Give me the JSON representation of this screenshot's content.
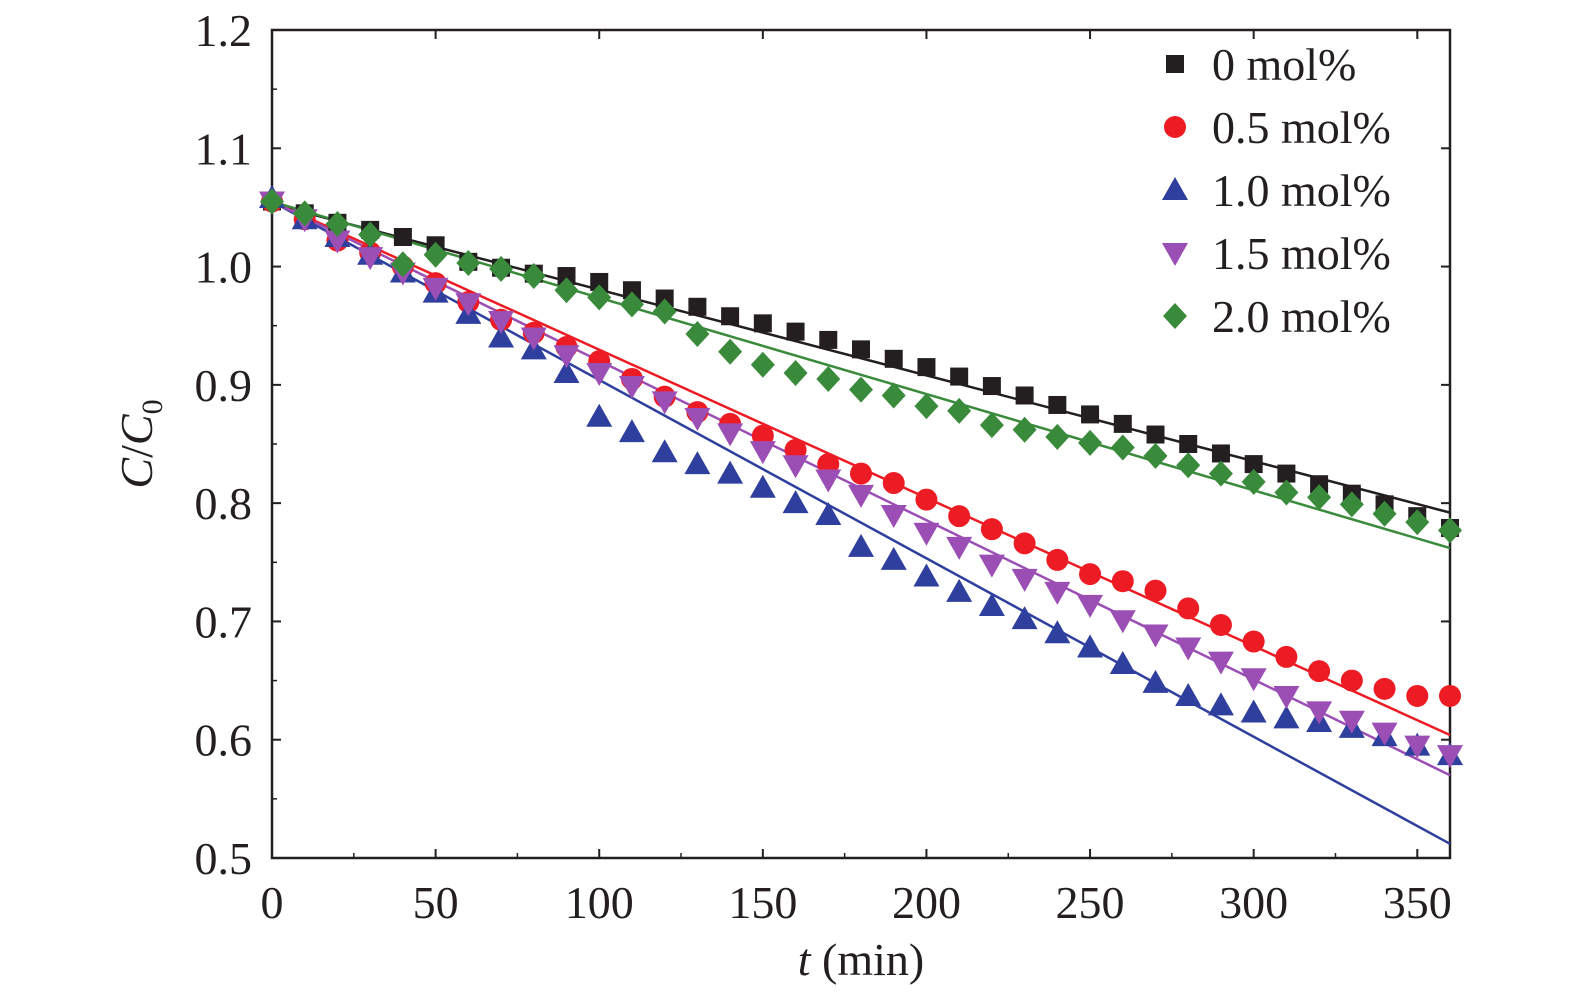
{
  "chart_data": {
    "type": "scatter",
    "xlabel": {
      "var": "t",
      "rest": " (min)"
    },
    "ylabel": {
      "var": "C",
      "slash": "/",
      "var2": "C",
      "sub": "0"
    },
    "xlim": [
      0,
      360
    ],
    "ylim": [
      0.5,
      1.2
    ],
    "xticks": [
      "0",
      "50",
      "100",
      "150",
      "200",
      "250",
      "300",
      "350"
    ],
    "yticks": [
      "0.5",
      "0.6",
      "0.7",
      "0.8",
      "0.9",
      "1.0",
      "1.1",
      "1.2"
    ],
    "grid": false,
    "legend_position": "top-right",
    "x": [
      0,
      10,
      20,
      30,
      40,
      50,
      60,
      70,
      80,
      90,
      100,
      110,
      120,
      130,
      140,
      150,
      160,
      170,
      180,
      190,
      200,
      210,
      220,
      230,
      240,
      250,
      260,
      270,
      280,
      290,
      300,
      310,
      320,
      330,
      340,
      350,
      360
    ],
    "series": [
      {
        "name": "0 mol%",
        "marker": "square",
        "color": "#231f20",
        "values": [
          1.055,
          1.045,
          1.037,
          1.031,
          1.025,
          1.018,
          1.004,
          0.999,
          0.994,
          0.992,
          0.987,
          0.98,
          0.973,
          0.966,
          0.958,
          0.952,
          0.945,
          0.938,
          0.93,
          0.922,
          0.915,
          0.907,
          0.899,
          0.891,
          0.883,
          0.875,
          0.867,
          0.858,
          0.85,
          0.842,
          0.833,
          0.825,
          0.816,
          0.808,
          0.799,
          0.789,
          0.779
        ],
        "fit": [
          1.053,
          0.792
        ]
      },
      {
        "name": "0.5 mol%",
        "marker": "circle",
        "color": "#ed1c24",
        "values": [
          1.055,
          1.04,
          1.022,
          1.012,
          1.0,
          0.986,
          0.97,
          0.955,
          0.944,
          0.932,
          0.92,
          0.905,
          0.89,
          0.877,
          0.867,
          0.857,
          0.845,
          0.833,
          0.825,
          0.817,
          0.803,
          0.789,
          0.778,
          0.766,
          0.752,
          0.74,
          0.734,
          0.726,
          0.711,
          0.697,
          0.683,
          0.67,
          0.658,
          0.65,
          0.643,
          0.637,
          0.637
        ],
        "fit": [
          1.055,
          0.604
        ]
      },
      {
        "name": "1.0 mol%",
        "marker": "triangle-up",
        "color": "#2e3f9e",
        "values": [
          1.058,
          1.04,
          1.025,
          1.01,
          0.995,
          0.978,
          0.96,
          0.94,
          0.93,
          0.91,
          0.873,
          0.86,
          0.843,
          0.833,
          0.825,
          0.813,
          0.8,
          0.79,
          0.763,
          0.752,
          0.738,
          0.725,
          0.713,
          0.702,
          0.69,
          0.678,
          0.664,
          0.648,
          0.637,
          0.629,
          0.623,
          0.618,
          0.615,
          0.61,
          0.603,
          0.595,
          0.587
        ],
        "fit": [
          1.055,
          0.512
        ]
      },
      {
        "name": "1.5 mol%",
        "marker": "triangle-down",
        "color": "#9b4fb4",
        "values": [
          1.055,
          1.04,
          1.022,
          1.008,
          0.995,
          0.982,
          0.969,
          0.954,
          0.94,
          0.925,
          0.91,
          0.899,
          0.886,
          0.872,
          0.859,
          0.844,
          0.832,
          0.82,
          0.807,
          0.79,
          0.775,
          0.763,
          0.748,
          0.736,
          0.725,
          0.714,
          0.701,
          0.689,
          0.678,
          0.666,
          0.652,
          0.637,
          0.624,
          0.616,
          0.606,
          0.595,
          0.587
        ],
        "fit": [
          1.055,
          0.57
        ]
      },
      {
        "name": "2.0 mol%",
        "marker": "diamond",
        "color": "#3a8a3c",
        "values": [
          1.055,
          1.045,
          1.036,
          1.027,
          1.002,
          1.01,
          1.003,
          0.998,
          0.992,
          0.98,
          0.974,
          0.968,
          0.962,
          0.943,
          0.928,
          0.917,
          0.91,
          0.905,
          0.896,
          0.891,
          0.882,
          0.878,
          0.866,
          0.862,
          0.856,
          0.851,
          0.847,
          0.84,
          0.832,
          0.825,
          0.818,
          0.809,
          0.805,
          0.799,
          0.791,
          0.784,
          0.777
        ],
        "fit": [
          1.055,
          0.762
        ]
      }
    ]
  }
}
